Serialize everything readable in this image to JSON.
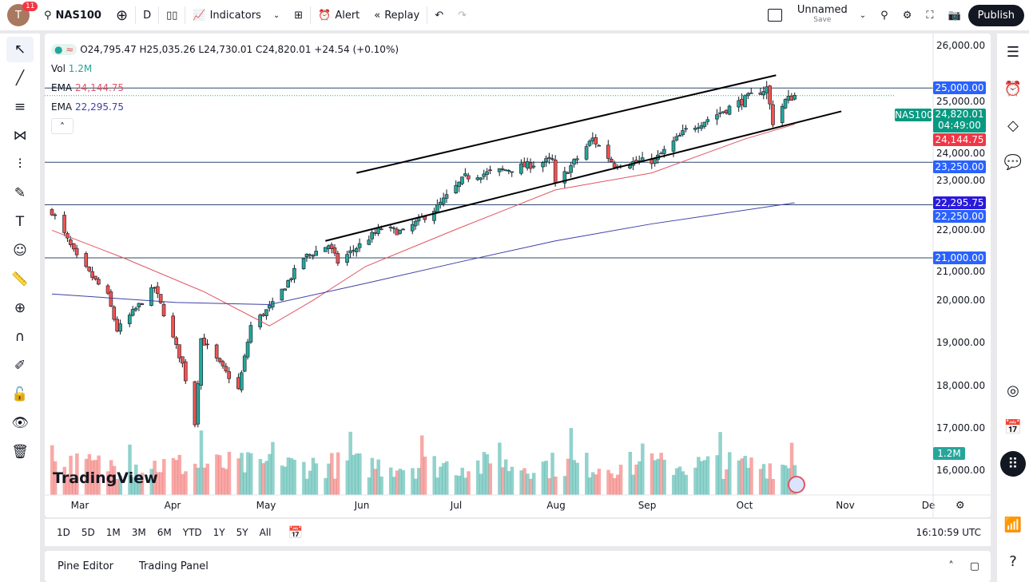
{
  "topbar": {
    "avatar_letter": "T",
    "notification_count": "11",
    "symbol": "NAS100",
    "interval": "D",
    "indicators_label": "Indicators",
    "alert_label": "Alert",
    "replay_label": "Replay",
    "layout_name": "Unnamed",
    "layout_sub": "Save",
    "publish_label": "Publish"
  },
  "legend": {
    "ohlc": "O24,795.47 H25,035.26 L24,730.01 C24,820.01 +24.54 (+0.10%)",
    "vol_label": "Vol",
    "vol_value": "1.2M",
    "ema1_label": "EMA",
    "ema1_value": "24,144.75",
    "ema2_label": "EMA",
    "ema2_value": "22,295.75"
  },
  "price_axis": {
    "ticks": [
      "26,000.00",
      "25,000.00",
      "24,000.00",
      "23,000.00",
      "22,000.00",
      "21,000.00",
      "20,000.00",
      "19,000.00",
      "18,000.00",
      "17,000.00",
      "16,000.00"
    ],
    "labels": [
      {
        "text": "25,000.00",
        "price": 25000,
        "color": "#2962ff"
      },
      {
        "text": "24,144.75",
        "price": 24144.75,
        "color": "#f23645"
      },
      {
        "text": "23,250.00",
        "price": 23250,
        "color": "#2962ff"
      },
      {
        "text": "22,295.75",
        "price": 22295.75,
        "color": "#2a1adb"
      },
      {
        "text": "22,250.00",
        "price": 22250,
        "color": "#2962ff"
      },
      {
        "text": "21,000.00",
        "price": 21000,
        "color": "#2962ff"
      }
    ],
    "last_symbol": "NAS100",
    "last_price": "24,820.01",
    "countdown": "04:49:00",
    "volume_label": "1.2M"
  },
  "time_axis": [
    "Mar",
    "Apr",
    "May",
    "Jun",
    "Jul",
    "Aug",
    "Sep",
    "Oct",
    "Nov",
    "De"
  ],
  "ranges": [
    "1D",
    "5D",
    "1M",
    "3M",
    "6M",
    "YTD",
    "1Y",
    "5Y",
    "All"
  ],
  "clock": "16:10:59 UTC",
  "panel": {
    "tab1": "Pine Editor",
    "tab2": "Trading Panel"
  },
  "watermark": "TradingView",
  "colors": {
    "up": "#26a69a",
    "down": "#ef5350",
    "ema_fast": "#e05560",
    "ema_slow": "#3f3fa8",
    "hline": "#2c4a6e",
    "accent": "#2962ff"
  },
  "horizontal_levels": [
    25000,
    23250,
    22250,
    21000
  ],
  "price_path": [
    [
      "2025-02-20",
      22100
    ],
    [
      "2025-02-28",
      21000
    ],
    [
      "2025-03-10",
      20100
    ],
    [
      "2025-03-13",
      19300
    ],
    [
      "2025-03-25",
      20300
    ],
    [
      "2025-04-03",
      18500
    ],
    [
      "2025-04-07",
      17100
    ],
    [
      "2025-04-09",
      19100
    ],
    [
      "2025-04-21",
      17900
    ],
    [
      "2025-04-25",
      19400
    ],
    [
      "2025-05-02",
      19900
    ],
    [
      "2025-05-12",
      21000
    ],
    [
      "2025-05-20",
      21300
    ],
    [
      "2025-05-23",
      20900
    ],
    [
      "2025-06-06",
      21700
    ],
    [
      "2025-06-13",
      21600
    ],
    [
      "2025-06-24",
      22200
    ],
    [
      "2025-07-03",
      22900
    ],
    [
      "2025-07-18",
      23100
    ],
    [
      "2025-07-31",
      23300
    ],
    [
      "2025-08-01",
      22700
    ],
    [
      "2025-08-13",
      23800
    ],
    [
      "2025-08-20",
      23200
    ],
    [
      "2025-09-02",
      23300
    ],
    [
      "2025-09-12",
      24000
    ],
    [
      "2025-09-25",
      24500
    ],
    [
      "2025-10-08",
      25000
    ],
    [
      "2025-10-10",
      24200
    ],
    [
      "2025-10-14",
      24700
    ],
    [
      "2025-10-17",
      24820
    ]
  ],
  "ema_fast_path": [
    [
      "2025-02-20",
      21650
    ],
    [
      "2025-03-15",
      21000
    ],
    [
      "2025-04-10",
      20200
    ],
    [
      "2025-05-01",
      19400
    ],
    [
      "2025-05-15",
      20000
    ],
    [
      "2025-06-01",
      20800
    ],
    [
      "2025-07-01",
      21700
    ],
    [
      "2025-08-01",
      22600
    ],
    [
      "2025-09-01",
      23000
    ],
    [
      "2025-10-01",
      23800
    ],
    [
      "2025-10-17",
      24145
    ]
  ],
  "ema_slow_path": [
    [
      "2025-02-20",
      20150
    ],
    [
      "2025-04-01",
      19950
    ],
    [
      "2025-05-01",
      19900
    ],
    [
      "2025-06-01",
      20400
    ],
    [
      "2025-07-01",
      20900
    ],
    [
      "2025-08-01",
      21400
    ],
    [
      "2025-09-01",
      21800
    ],
    [
      "2025-10-17",
      22296
    ]
  ],
  "trendlines": [
    [
      [
        "2025-05-29",
        23000
      ],
      [
        "2025-10-11",
        25300
      ]
    ],
    [
      [
        "2025-05-19",
        21400
      ],
      [
        "2025-11-01",
        24450
      ]
    ]
  ]
}
